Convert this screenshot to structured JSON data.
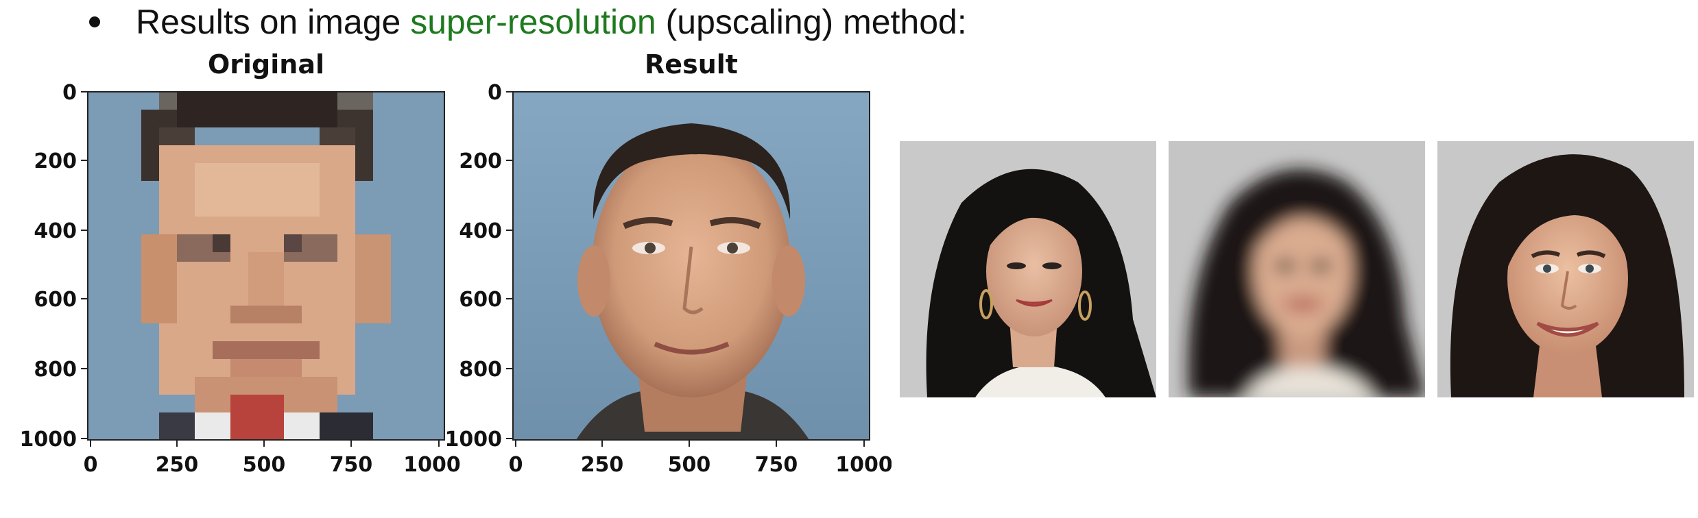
{
  "caption": {
    "pre": "Results on image ",
    "highlight": "super-resolution",
    "post": " (upscaling) method:",
    "highlight_color": "#1e7a1e"
  },
  "plots": [
    {
      "title": "Original",
      "yticks": [
        "0",
        "200",
        "400",
        "600",
        "800",
        "1000"
      ],
      "xticks": [
        "0",
        "250",
        "500",
        "750",
        "1000"
      ]
    },
    {
      "title": "Result",
      "yticks": [
        "0",
        "200",
        "400",
        "600",
        "800",
        "1000"
      ],
      "xticks": [
        "0",
        "250",
        "500",
        "750",
        "1000"
      ]
    }
  ],
  "faces": [
    {
      "name": "sharp-original-photo"
    },
    {
      "name": "blurred-lowres-photo"
    },
    {
      "name": "upscaled-result-photo"
    }
  ]
}
